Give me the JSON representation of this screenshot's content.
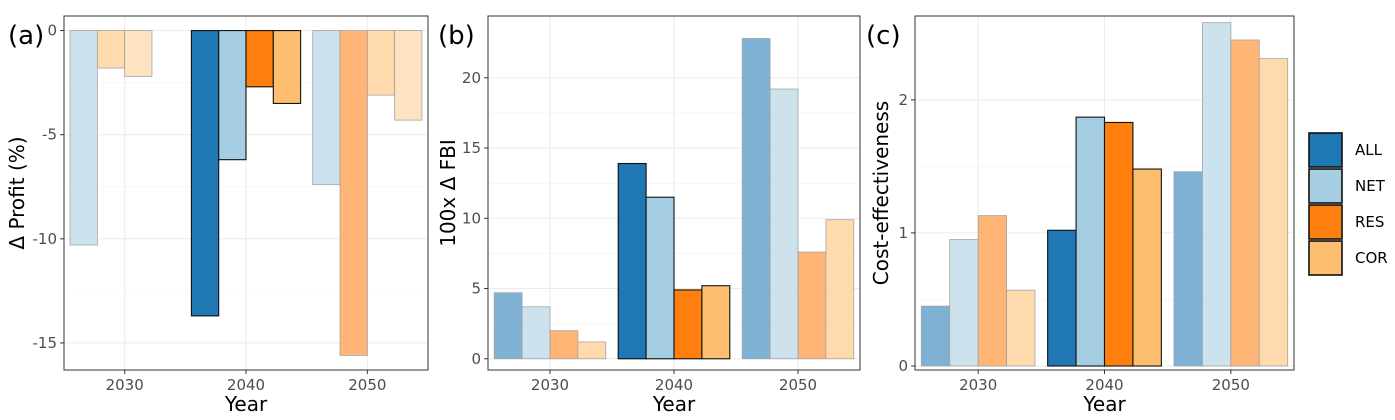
{
  "legend": {
    "items": [
      {
        "label": "ALL",
        "color": "#1f77b4"
      },
      {
        "label": "NET",
        "color": "#a6cee3"
      },
      {
        "label": "RES",
        "color": "#ff7f0e"
      },
      {
        "label": "COR",
        "color": "#fdbf6f"
      }
    ]
  },
  "chart_data": [
    {
      "type": "bar",
      "panel_label": "(a)",
      "xlabel": "Year",
      "ylabel": "Δ Profit (%)",
      "categories": [
        "2030",
        "2040",
        "2050"
      ],
      "ylim": [
        -16.3,
        0.7
      ],
      "yticks": [
        0,
        -5,
        -10,
        -15
      ],
      "ytick_labels": [
        "0",
        "-5",
        "-10",
        "-15"
      ],
      "grid": true,
      "series": [
        {
          "name": "ALL",
          "values": [
            null,
            -13.7,
            null
          ]
        },
        {
          "name": "NET",
          "values": [
            -10.3,
            -6.2,
            -7.4
          ]
        },
        {
          "name": "RES",
          "values": [
            null,
            -2.7,
            -15.6
          ]
        },
        {
          "name": "COR",
          "values": [
            -1.8,
            -3.5,
            -3.1
          ]
        }
      ],
      "extra_bars": {
        "2030": [
          -2.2
        ],
        "2050": [
          -4.3
        ]
      },
      "highlight_category": "2040"
    },
    {
      "type": "bar",
      "panel_label": "(b)",
      "xlabel": "Year",
      "ylabel": "100x Δ FBI",
      "categories": [
        "2030",
        "2040",
        "2050"
      ],
      "ylim": [
        -0.8,
        24.4
      ],
      "yticks": [
        0,
        5,
        10,
        15,
        20
      ],
      "ytick_labels": [
        "0",
        "5",
        "10",
        "15",
        "20"
      ],
      "grid": true,
      "series": [
        {
          "name": "ALL",
          "values": [
            4.7,
            13.9,
            22.8
          ]
        },
        {
          "name": "NET",
          "values": [
            3.7,
            11.5,
            19.2
          ]
        },
        {
          "name": "RES",
          "values": [
            2.0,
            4.9,
            7.6
          ]
        },
        {
          "name": "COR",
          "values": [
            1.2,
            5.2,
            9.9
          ]
        }
      ],
      "highlight_category": "2040"
    },
    {
      "type": "bar",
      "panel_label": "(c)",
      "xlabel": "Year",
      "ylabel": "Cost-effectiveness",
      "categories": [
        "2030",
        "2040",
        "2050"
      ],
      "ylim": [
        -0.03,
        2.63
      ],
      "yticks": [
        0,
        1,
        2
      ],
      "ytick_labels": [
        "0",
        "1",
        "2"
      ],
      "grid": true,
      "series": [
        {
          "name": "ALL",
          "values": [
            0.45,
            1.02,
            1.46
          ]
        },
        {
          "name": "NET",
          "values": [
            0.95,
            1.87,
            2.58
          ]
        },
        {
          "name": "RES",
          "values": [
            1.13,
            1.83,
            2.45
          ]
        },
        {
          "name": "COR",
          "values": [
            0.57,
            1.48,
            2.31
          ]
        }
      ],
      "highlight_category": "2040"
    }
  ]
}
